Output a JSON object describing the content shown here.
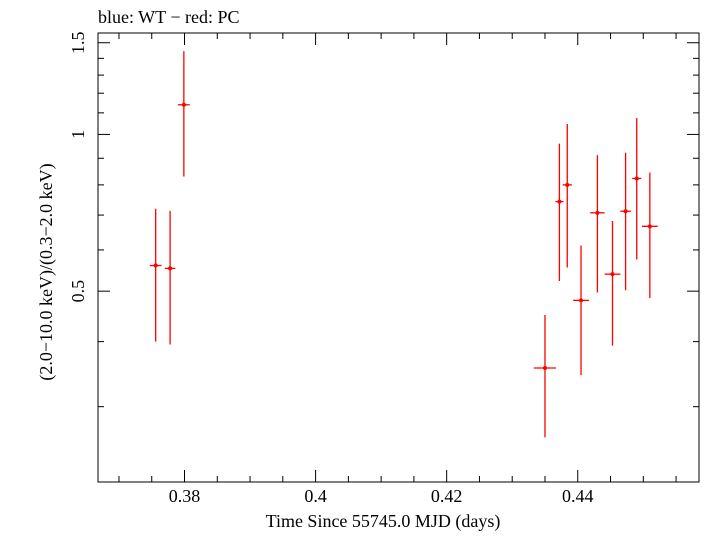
{
  "title": "blue: WT − red: PC",
  "colors": {
    "pc": "#ff0000",
    "wt": "#0000ff",
    "axes": "#000000"
  },
  "chart_data": {
    "type": "scatter",
    "title": "blue: WT − red: PC",
    "xlabel": "Time Since 55745.0 MJD (days)",
    "ylabel": "(2.0−10.0 keV)/(0.3−2.0 keV)",
    "xlim": [
      0.3668,
      0.4585
    ],
    "ylim": [
      0.215,
      1.566
    ],
    "yscale": "log",
    "x_ticks": [
      0.38,
      0.4,
      0.42,
      0.44
    ],
    "x_tick_labels": [
      "0.38",
      "0.4",
      "0.42",
      "0.44"
    ],
    "y_ticks": [
      0.5,
      1,
      1.5
    ],
    "y_tick_labels": [
      "0.5",
      "1",
      "1.5"
    ],
    "grid": false,
    "series": [
      {
        "name": "PC",
        "color": "#ff0000",
        "points": [
          {
            "x": 0.3756,
            "y": 0.56,
            "xerr": 0.0009,
            "ylo": 0.4,
            "yhi": 0.72
          },
          {
            "x": 0.3778,
            "y": 0.553,
            "xerr": 0.0008,
            "ylo": 0.395,
            "yhi": 0.713
          },
          {
            "x": 0.3799,
            "y": 1.14,
            "xerr": 0.0009,
            "ylo": 0.83,
            "yhi": 1.445
          },
          {
            "x": 0.435,
            "y": 0.356,
            "xerr": 0.0017,
            "ylo": 0.262,
            "yhi": 0.45
          },
          {
            "x": 0.4372,
            "y": 0.743,
            "xerr": 0.0006,
            "ylo": 0.523,
            "yhi": 0.96
          },
          {
            "x": 0.4384,
            "y": 0.8,
            "xerr": 0.0007,
            "ylo": 0.555,
            "yhi": 1.047
          },
          {
            "x": 0.4405,
            "y": 0.48,
            "xerr": 0.0012,
            "ylo": 0.345,
            "yhi": 0.612
          },
          {
            "x": 0.443,
            "y": 0.707,
            "xerr": 0.0011,
            "ylo": 0.497,
            "yhi": 0.912
          },
          {
            "x": 0.4453,
            "y": 0.539,
            "xerr": 0.0012,
            "ylo": 0.393,
            "yhi": 0.682
          },
          {
            "x": 0.4473,
            "y": 0.712,
            "xerr": 0.0008,
            "ylo": 0.502,
            "yhi": 0.922
          },
          {
            "x": 0.449,
            "y": 0.823,
            "xerr": 0.0007,
            "ylo": 0.575,
            "yhi": 1.075
          },
          {
            "x": 0.451,
            "y": 0.666,
            "xerr": 0.0012,
            "ylo": 0.485,
            "yhi": 0.845
          }
        ]
      }
    ]
  }
}
